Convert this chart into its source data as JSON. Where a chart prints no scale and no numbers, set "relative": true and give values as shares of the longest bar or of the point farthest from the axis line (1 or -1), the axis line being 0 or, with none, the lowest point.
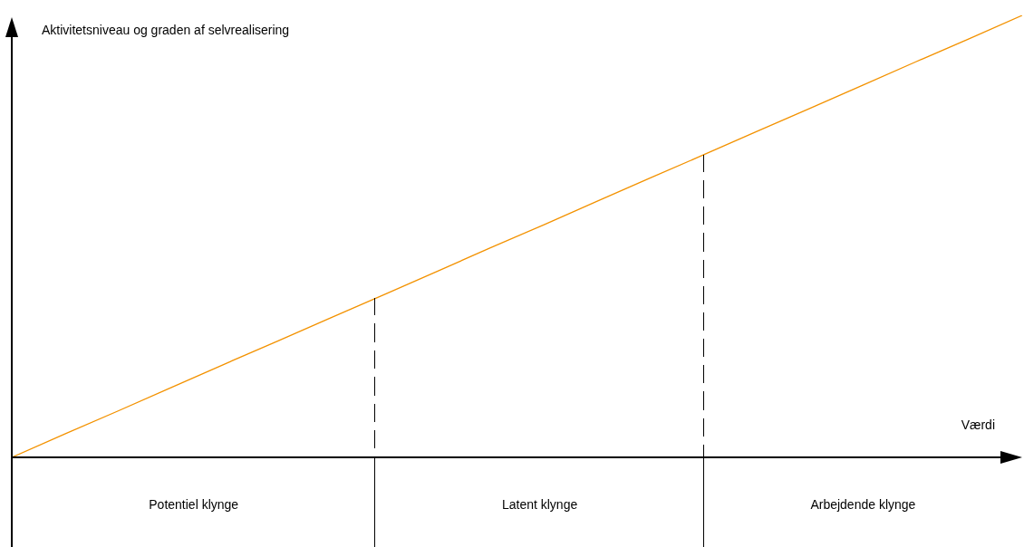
{
  "chart_data": {
    "type": "line",
    "relative": true,
    "xlabel": "Værdi",
    "ylabel": "Aktivitetsniveau og graden af selvrealisering",
    "legend": false,
    "marker": "none",
    "line_style": "solid",
    "categories": [
      null,
      null,
      null,
      null,
      null,
      null,
      null,
      null,
      null,
      null,
      null,
      null,
      null,
      null,
      null,
      null,
      null,
      null,
      null,
      null
    ],
    "series": [
      {
        "color": "#f39200",
        "values": [
          0,
          0.053,
          0.105,
          0.158,
          0.211,
          0.263,
          0.316,
          0.368,
          0.421,
          0.474,
          0.526,
          0.579,
          0.632,
          0.684,
          0.737,
          0.789,
          0.842,
          0.895,
          0.947,
          1
        ]
      }
    ],
    "annotations": [
      "Potentiel klynge",
      "Latent klynge",
      "Arbejdende klynge"
    ]
  }
}
